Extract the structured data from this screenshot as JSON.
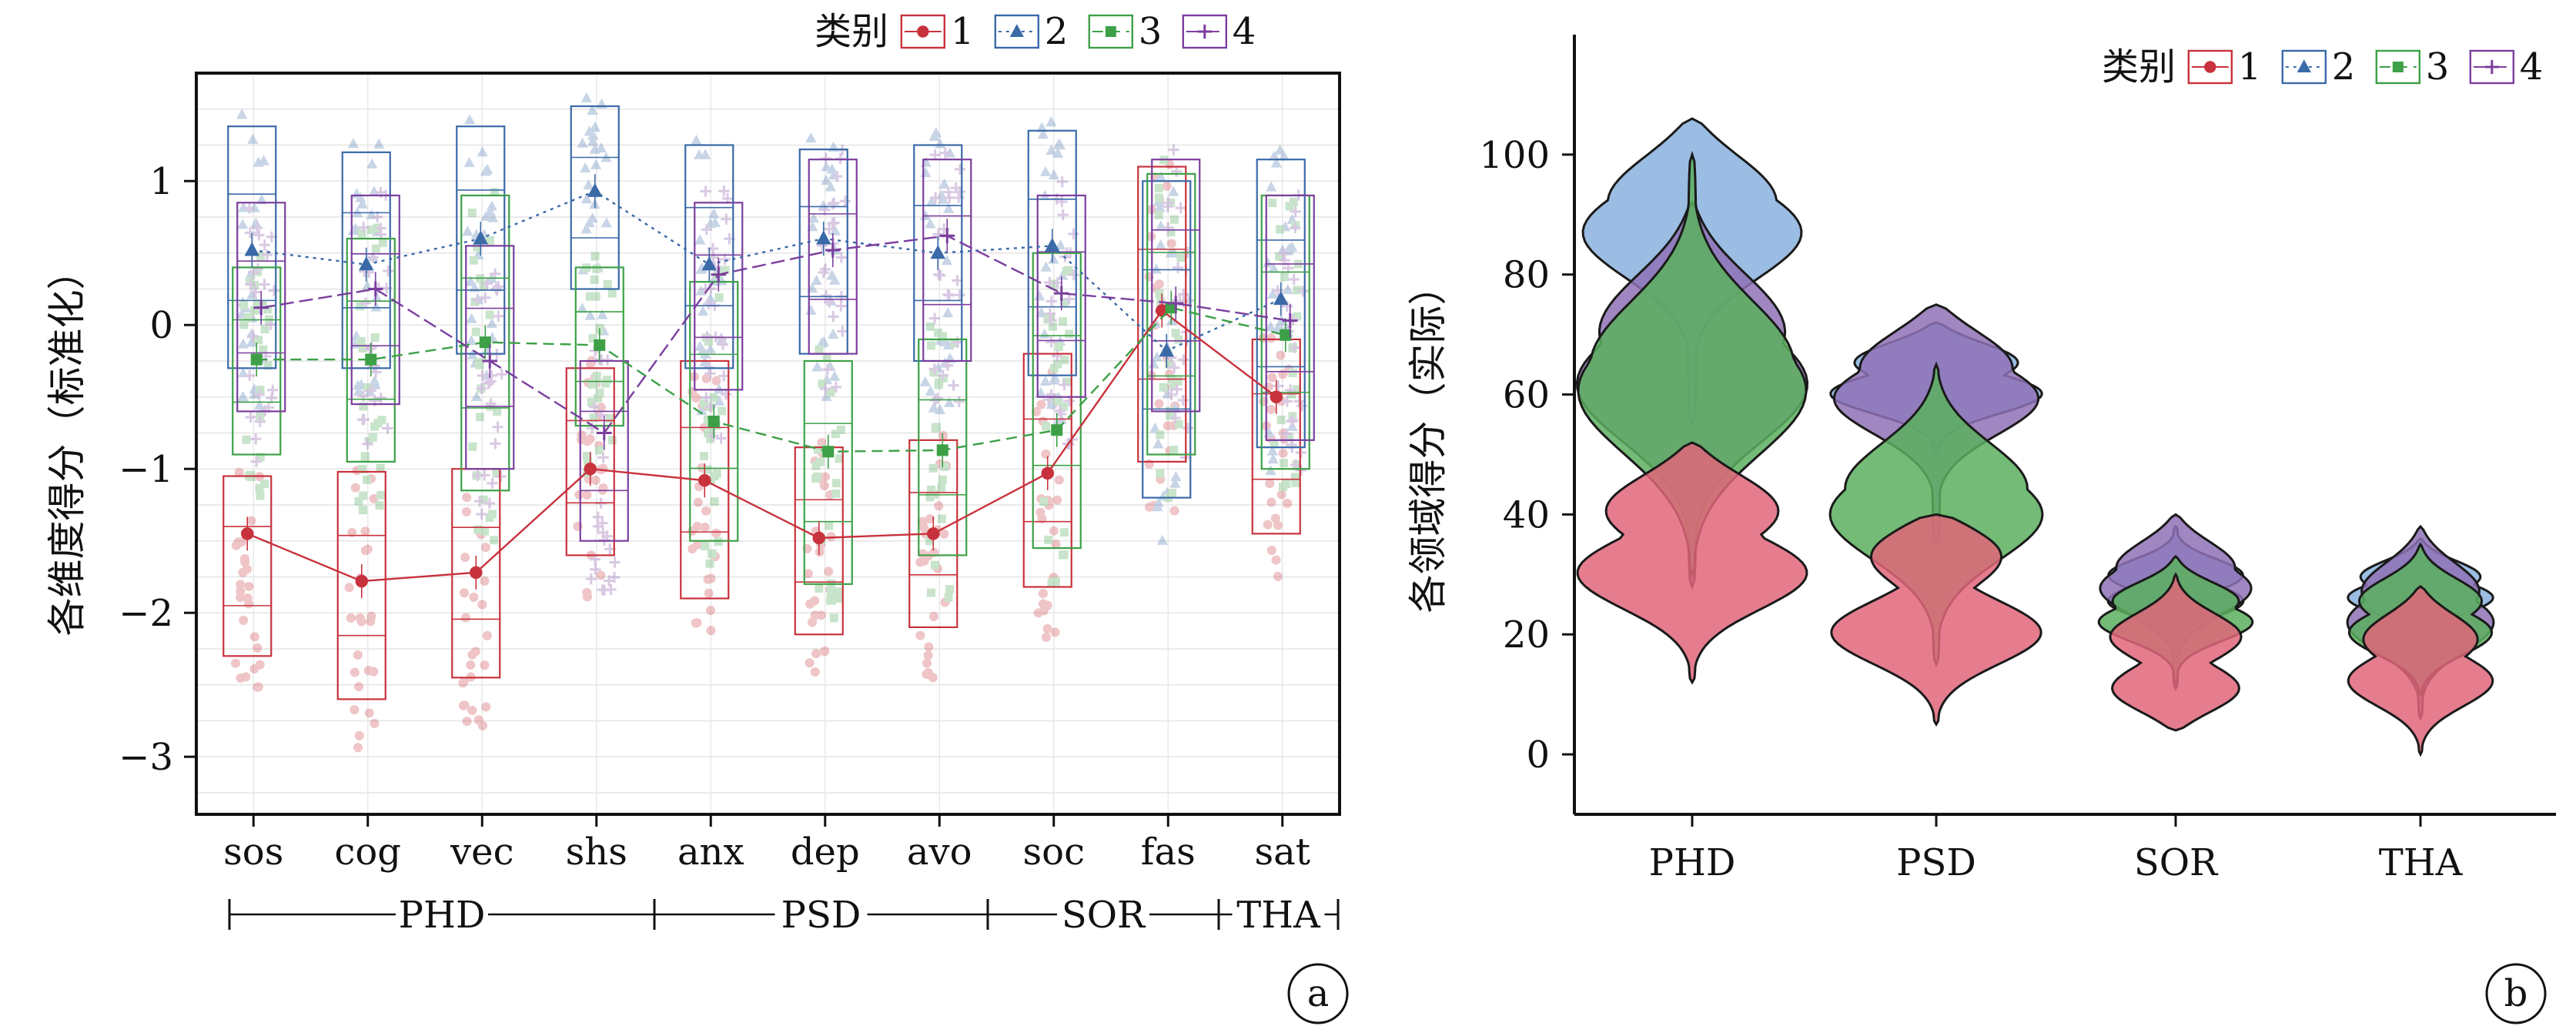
{
  "chart_data": [
    {
      "type": "box_line",
      "panel_label": "a",
      "ylabel": "各维度得分（标准化）",
      "ylim": [
        -3.4,
        1.75
      ],
      "yticks": [
        1,
        0,
        -1,
        -2,
        -3
      ],
      "ytick_labels": [
        "1",
        "0",
        "−1",
        "−2",
        "−3"
      ],
      "categories": [
        "sos",
        "cog",
        "vec",
        "shs",
        "anx",
        "dep",
        "avo",
        "soc",
        "fas",
        "sat"
      ],
      "groups": [
        {
          "label": "PHD",
          "from": 0,
          "to": 3
        },
        {
          "label": "PSD",
          "from": 4,
          "to": 6
        },
        {
          "label": "SOR",
          "from": 7,
          "to": 8
        },
        {
          "label": "THA",
          "from": 9,
          "to": 9
        }
      ],
      "legend": {
        "title": "类别",
        "position": "top",
        "labels": [
          "1",
          "2",
          "3",
          "4"
        ]
      },
      "series": [
        {
          "name": "1",
          "color": "#c8323c",
          "marker": "circle",
          "means": [
            -1.45,
            -1.78,
            -1.72,
            -1.0,
            -1.08,
            -1.48,
            -1.45,
            -1.03,
            0.1,
            -0.5
          ],
          "box": [
            [
              -2.3,
              -1.05
            ],
            [
              -2.6,
              -1.02
            ],
            [
              -2.45,
              -1.0
            ],
            [
              -1.6,
              -0.3
            ],
            [
              -1.9,
              -0.25
            ],
            [
              -2.15,
              -0.85
            ],
            [
              -2.1,
              -0.8
            ],
            [
              -1.82,
              -0.2
            ],
            [
              -0.95,
              1.1
            ],
            [
              -1.45,
              -0.1
            ]
          ]
        },
        {
          "name": "2",
          "color": "#3a6aa8",
          "marker": "triangle",
          "means": [
            0.52,
            0.42,
            0.6,
            0.93,
            0.42,
            0.6,
            0.5,
            0.55,
            -0.18,
            0.18
          ],
          "box": [
            [
              -0.3,
              1.38
            ],
            [
              -0.3,
              1.2
            ],
            [
              -0.2,
              1.38
            ],
            [
              0.25,
              1.52
            ],
            [
              -0.3,
              1.25
            ],
            [
              -0.2,
              1.22
            ],
            [
              -0.25,
              1.25
            ],
            [
              -0.35,
              1.35
            ],
            [
              -1.2,
              1.0
            ],
            [
              -0.85,
              1.15
            ]
          ]
        },
        {
          "name": "3",
          "color": "#3da047",
          "marker": "square",
          "means": [
            -0.24,
            -0.24,
            -0.12,
            -0.14,
            -0.67,
            -0.88,
            -0.87,
            -0.73,
            0.12,
            -0.07
          ],
          "box": [
            [
              -0.9,
              0.4
            ],
            [
              -0.95,
              0.6
            ],
            [
              -1.15,
              0.9
            ],
            [
              -0.7,
              0.4
            ],
            [
              -1.5,
              0.3
            ],
            [
              -1.8,
              -0.25
            ],
            [
              -1.6,
              -0.1
            ],
            [
              -1.55,
              0.5
            ],
            [
              -0.9,
              1.05
            ],
            [
              -1.0,
              0.9
            ]
          ]
        },
        {
          "name": "4",
          "color": "#7b3f9e",
          "marker": "plus",
          "means": [
            0.12,
            0.25,
            -0.25,
            -0.75,
            0.35,
            0.52,
            0.62,
            0.22,
            0.15,
            0.03
          ],
          "box": [
            [
              -0.6,
              0.85
            ],
            [
              -0.55,
              0.9
            ],
            [
              -1.0,
              0.55
            ],
            [
              -1.5,
              -0.25
            ],
            [
              -0.45,
              0.85
            ],
            [
              -0.2,
              1.15
            ],
            [
              -0.25,
              1.15
            ],
            [
              -0.5,
              0.9
            ],
            [
              -0.6,
              1.15
            ],
            [
              -0.8,
              0.9
            ]
          ]
        }
      ]
    },
    {
      "type": "violin",
      "panel_label": "b",
      "ylabel": "各领域得分（实际）",
      "ylim": [
        -10,
        120
      ],
      "yticks": [
        0,
        20,
        40,
        60,
        80,
        100
      ],
      "categories": [
        "PHD",
        "PSD",
        "SOR",
        "THA"
      ],
      "legend": {
        "title": "类别",
        "position": "top-right",
        "labels": [
          "1",
          "2",
          "3",
          "4"
        ]
      },
      "series": [
        {
          "name": "1",
          "color": "#e0667a",
          "ranges": [
            [
              12,
              52
            ],
            [
              5,
              40
            ],
            [
              4,
              30
            ],
            [
              0,
              28
            ]
          ],
          "modes": [
            [
              30,
              42
            ],
            [
              20,
              35
            ],
            [
              10,
              20
            ],
            [
              12,
              20
            ]
          ]
        },
        {
          "name": "2",
          "color": "#8ab2de",
          "ranges": [
            [
              55,
              106
            ],
            [
              50,
              72
            ],
            [
              20,
              38
            ],
            [
              18,
              36
            ]
          ],
          "modes": [
            [
              88,
              94
            ],
            [
              60,
              66
            ],
            [
              25,
              30
            ],
            [
              26,
              30
            ]
          ]
        },
        {
          "name": "3",
          "color": "#5aaf5e",
          "ranges": [
            [
              30,
              100
            ],
            [
              15,
              65
            ],
            [
              12,
              33
            ],
            [
              10,
              35
            ]
          ],
          "modes": [
            [
              60,
              65
            ],
            [
              40,
              45
            ],
            [
              22,
              26
            ],
            [
              20,
              26
            ]
          ]
        },
        {
          "name": "4",
          "color": "#8f72b6",
          "ranges": [
            [
              28,
              92
            ],
            [
              35,
              75
            ],
            [
              11,
              40
            ],
            [
              6,
              38
            ]
          ],
          "modes": [
            [
              62,
              72
            ],
            [
              60,
              66
            ],
            [
              28,
              32
            ],
            [
              22,
              28
            ]
          ]
        }
      ]
    }
  ]
}
